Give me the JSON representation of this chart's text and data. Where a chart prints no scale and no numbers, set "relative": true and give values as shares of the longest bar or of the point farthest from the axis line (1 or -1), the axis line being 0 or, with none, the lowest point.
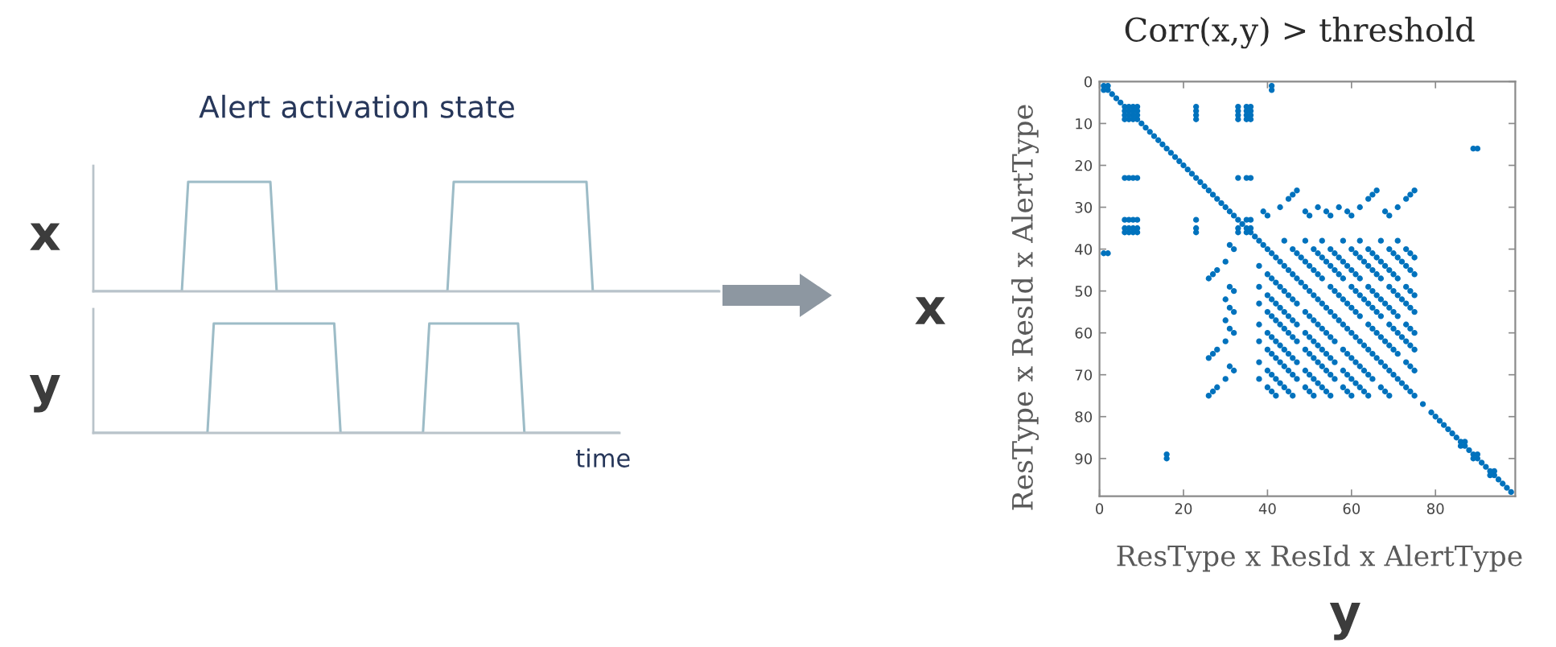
{
  "chart_data": [
    {
      "type": "line",
      "title": "Alert activation state",
      "ylabel": "x",
      "relative": true,
      "color": "#9dbcc7",
      "categories": [
        null,
        null,
        null,
        null,
        null,
        null,
        null,
        null,
        null,
        null,
        null,
        null,
        null,
        null,
        null,
        null,
        null,
        null,
        null,
        null,
        null,
        null,
        null,
        null,
        null,
        null,
        null,
        null,
        null,
        null,
        null,
        null,
        null,
        null,
        null,
        null,
        null,
        null,
        null,
        null,
        null,
        null,
        null,
        null,
        null,
        null,
        null,
        null,
        null,
        null,
        null,
        null,
        null,
        null,
        null,
        null,
        null,
        null,
        null,
        null,
        null,
        null,
        null,
        null,
        null,
        null,
        null,
        null,
        null,
        null,
        null,
        null,
        null,
        null,
        null,
        null,
        null,
        null,
        null,
        null,
        null,
        null,
        null,
        null,
        null,
        null,
        null,
        null,
        null,
        null,
        null,
        null,
        null,
        null,
        null,
        null,
        null,
        null,
        null,
        null
      ],
      "values": [
        0,
        0,
        0,
        0,
        0,
        0,
        0,
        0,
        0,
        0,
        0,
        0,
        0,
        0,
        0,
        1,
        1,
        1,
        1,
        1,
        1,
        1,
        1,
        1,
        1,
        1,
        1,
        1,
        1,
        0,
        0,
        0,
        0,
        0,
        0,
        0,
        0,
        0,
        0,
        0,
        0,
        0,
        0,
        0,
        0,
        0,
        0,
        0,
        0,
        0,
        0,
        0,
        0,
        0,
        0,
        0,
        0,
        1,
        1,
        1,
        1,
        1,
        1,
        1,
        1,
        1,
        1,
        1,
        1,
        1,
        1,
        1,
        1,
        1,
        1,
        1,
        1,
        1,
        1,
        0,
        0,
        0,
        0,
        0,
        0,
        0,
        0,
        0,
        0,
        0,
        0,
        0,
        0,
        0,
        0,
        0,
        0,
        0,
        0,
        0
      ]
    },
    {
      "type": "line",
      "ylabel": "y",
      "xlabel": "time",
      "relative": true,
      "color": "#9dbcc7",
      "categories": [
        null,
        null,
        null,
        null,
        null,
        null,
        null,
        null,
        null,
        null,
        null,
        null,
        null,
        null,
        null,
        null,
        null,
        null,
        null,
        null,
        null,
        null,
        null,
        null,
        null,
        null,
        null,
        null,
        null,
        null,
        null,
        null,
        null,
        null,
        null,
        null,
        null,
        null,
        null,
        null,
        null,
        null,
        null,
        null,
        null,
        null,
        null,
        null,
        null,
        null,
        null,
        null,
        null,
        null,
        null,
        null,
        null,
        null,
        null,
        null,
        null,
        null,
        null,
        null,
        null,
        null,
        null,
        null,
        null,
        null,
        null,
        null,
        null,
        null,
        null,
        null,
        null,
        null,
        null,
        null,
        null,
        null,
        null,
        null
      ],
      "values": [
        0,
        0,
        0,
        0,
        0,
        0,
        0,
        0,
        0,
        0,
        0,
        0,
        0,
        0,
        0,
        0,
        0,
        0,
        0,
        1,
        1,
        1,
        1,
        1,
        1,
        1,
        1,
        1,
        1,
        1,
        1,
        1,
        1,
        1,
        1,
        1,
        1,
        1,
        1,
        0,
        0,
        0,
        0,
        0,
        0,
        0,
        0,
        0,
        0,
        0,
        0,
        0,
        0,
        1,
        1,
        1,
        1,
        1,
        1,
        1,
        1,
        1,
        1,
        1,
        1,
        1,
        1,
        1,
        0,
        0,
        0,
        0,
        0,
        0,
        0,
        0,
        0,
        0,
        0,
        0,
        0,
        0,
        0,
        0
      ]
    },
    {
      "type": "scatter",
      "title": "Corr(x,y) > threshold",
      "xlabel": "ResType x ResId x AlertType",
      "ylabel": "ResType x ResId x AlertType",
      "annotations": [
        "x",
        "y"
      ],
      "color": "#0072bd",
      "marker": "circle",
      "xlim": [
        0,
        99
      ],
      "ylim": [
        99,
        0
      ],
      "xticks": [
        0,
        20,
        40,
        60,
        80
      ],
      "yticks": [
        0,
        10,
        20,
        30,
        40,
        50,
        60,
        70,
        80,
        90
      ],
      "x": [
        1,
        2,
        3,
        4,
        5,
        6,
        7,
        8,
        9,
        10,
        11,
        12,
        13,
        14,
        15,
        16,
        17,
        18,
        19,
        20,
        21,
        22,
        23,
        24,
        25,
        26,
        27,
        28,
        29,
        30,
        31,
        32,
        33,
        34,
        35,
        36,
        37,
        38,
        39,
        40,
        41,
        42,
        43,
        44,
        45,
        46,
        47,
        48,
        49,
        50,
        51,
        52,
        53,
        54,
        55,
        56,
        57,
        58,
        59,
        60,
        61,
        62,
        63,
        64,
        65,
        66,
        67,
        68,
        69,
        70,
        71,
        72,
        73,
        74,
        75,
        77,
        79,
        80,
        81,
        82,
        83,
        84,
        85,
        86,
        87,
        88,
        89,
        90,
        91,
        92,
        93,
        94,
        95,
        96,
        97,
        98,
        2,
        7,
        8,
        9,
        8,
        9,
        9,
        23,
        23,
        23,
        23,
        33,
        33,
        33,
        33,
        35,
        35,
        35,
        35,
        36,
        36,
        36,
        36,
        41,
        41,
        89,
        90,
        33,
        35,
        36,
        35,
        36,
        36,
        87,
        90,
        94,
        1,
        6,
        6,
        6,
        7,
        7,
        8,
        6,
        7,
        8,
        9,
        6,
        7,
        8,
        9,
        6,
        7,
        8,
        9,
        6,
        7,
        8,
        9,
        1,
        2,
        16,
        16,
        23,
        23,
        23,
        33,
        33,
        35,
        86,
        89,
        93,
        39,
        40,
        43,
        45,
        46,
        47,
        49,
        50,
        52,
        54,
        55,
        57,
        59,
        60,
        62,
        64,
        65,
        66,
        68,
        69,
        71,
        73,
        74,
        75,
        31,
        32,
        30,
        28,
        27,
        26,
        31,
        32,
        30,
        31,
        32,
        30,
        31,
        32,
        30,
        28,
        27,
        26,
        31,
        32,
        30,
        28,
        27,
        26,
        44,
        46,
        47,
        48,
        49,
        50,
        51,
        52,
        53,
        55,
        56,
        57,
        58,
        59,
        60,
        61,
        62,
        64,
        65,
        66,
        67,
        68,
        69,
        70,
        71,
        73,
        74,
        75,
        49,
        51,
        52,
        53,
        54,
        55,
        56,
        57,
        58,
        60,
        61,
        62,
        63,
        64,
        65,
        66,
        67,
        69,
        70,
        71,
        72,
        73,
        74,
        75,
        53,
        55,
        56,
        57,
        58,
        59,
        60,
        61,
        62,
        64,
        65,
        66,
        67,
        68,
        69,
        70,
        71,
        73,
        74,
        75,
        58,
        60,
        61,
        62,
        63,
        64,
        65,
        66,
        67,
        69,
        70,
        71,
        72,
        73,
        74,
        75,
        62,
        64,
        65,
        66,
        67,
        68,
        69,
        70,
        71,
        73,
        74,
        75,
        67,
        69,
        70,
        71,
        72,
        73,
        74,
        75,
        71,
        73,
        74,
        75,
        38,
        40,
        41,
        42,
        43,
        44,
        45,
        46,
        47,
        49,
        50,
        51,
        52,
        53,
        54,
        55,
        56,
        58,
        59,
        60,
        61,
        62,
        63,
        64,
        65,
        67,
        68,
        69,
        38,
        40,
        41,
        42,
        43,
        44,
        45,
        46,
        47,
        49,
        50,
        51,
        52,
        53,
        54,
        55,
        56,
        58,
        59,
        60,
        61,
        62,
        63,
        64,
        38,
        40,
        41,
        42,
        43,
        44,
        45,
        46,
        47,
        49,
        50,
        51,
        52,
        53,
        54,
        55,
        56,
        58,
        59,
        60,
        38,
        40,
        41,
        42,
        43,
        44,
        45,
        46,
        47,
        49,
        50,
        51,
        52,
        53,
        54,
        55,
        38,
        40,
        41,
        42,
        43,
        44,
        45,
        46,
        47,
        49,
        50,
        51,
        38,
        40,
        41,
        42,
        43,
        44,
        45,
        46,
        38,
        40,
        41,
        42
      ],
      "values": [
        1,
        2,
        3,
        4,
        5,
        6,
        7,
        8,
        9,
        10,
        11,
        12,
        13,
        14,
        15,
        16,
        17,
        18,
        19,
        20,
        21,
        22,
        23,
        24,
        25,
        26,
        27,
        28,
        29,
        30,
        31,
        32,
        33,
        34,
        35,
        36,
        37,
        38,
        39,
        40,
        41,
        42,
        43,
        44,
        45,
        46,
        47,
        48,
        49,
        50,
        51,
        52,
        53,
        54,
        55,
        56,
        57,
        58,
        59,
        60,
        61,
        62,
        63,
        64,
        65,
        66,
        67,
        68,
        69,
        70,
        71,
        72,
        73,
        74,
        75,
        77,
        79,
        80,
        81,
        82,
        83,
        84,
        85,
        86,
        87,
        88,
        89,
        90,
        91,
        92,
        93,
        94,
        95,
        96,
        97,
        98,
        1,
        6,
        6,
        6,
        7,
        7,
        8,
        6,
        7,
        8,
        9,
        6,
        7,
        8,
        9,
        6,
        7,
        8,
        9,
        6,
        7,
        8,
        9,
        1,
        2,
        16,
        16,
        23,
        23,
        23,
        33,
        33,
        35,
        86,
        89,
        93,
        2,
        7,
        8,
        9,
        8,
        9,
        9,
        23,
        23,
        23,
        23,
        33,
        33,
        33,
        33,
        35,
        35,
        35,
        35,
        36,
        36,
        36,
        36,
        41,
        41,
        89,
        90,
        33,
        35,
        36,
        35,
        36,
        36,
        87,
        90,
        94,
        31,
        32,
        30,
        28,
        27,
        26,
        31,
        32,
        30,
        31,
        32,
        30,
        31,
        32,
        30,
        28,
        27,
        26,
        31,
        32,
        30,
        28,
        27,
        26,
        39,
        40,
        43,
        45,
        46,
        47,
        49,
        50,
        52,
        54,
        55,
        57,
        59,
        60,
        62,
        64,
        65,
        66,
        68,
        69,
        71,
        73,
        74,
        75,
        38,
        40,
        41,
        42,
        43,
        44,
        45,
        46,
        47,
        49,
        50,
        51,
        52,
        53,
        54,
        55,
        56,
        58,
        59,
        60,
        61,
        62,
        63,
        64,
        65,
        67,
        68,
        69,
        38,
        40,
        41,
        42,
        43,
        44,
        45,
        46,
        47,
        49,
        50,
        51,
        52,
        53,
        54,
        55,
        56,
        58,
        59,
        60,
        61,
        62,
        63,
        64,
        38,
        40,
        41,
        42,
        43,
        44,
        45,
        46,
        47,
        49,
        50,
        51,
        52,
        53,
        54,
        55,
        56,
        58,
        59,
        60,
        38,
        40,
        41,
        42,
        43,
        44,
        45,
        46,
        47,
        49,
        50,
        51,
        52,
        53,
        54,
        55,
        38,
        40,
        41,
        42,
        43,
        44,
        45,
        46,
        47,
        49,
        50,
        51,
        38,
        40,
        41,
        42,
        43,
        44,
        45,
        46,
        38,
        40,
        41,
        42,
        44,
        46,
        47,
        48,
        49,
        50,
        51,
        52,
        53,
        55,
        56,
        57,
        58,
        59,
        60,
        61,
        62,
        64,
        65,
        66,
        67,
        68,
        69,
        70,
        71,
        73,
        74,
        75,
        49,
        51,
        52,
        53,
        54,
        55,
        56,
        57,
        58,
        60,
        61,
        62,
        63,
        64,
        65,
        66,
        67,
        69,
        70,
        71,
        72,
        73,
        74,
        75,
        53,
        55,
        56,
        57,
        58,
        59,
        60,
        61,
        62,
        64,
        65,
        66,
        67,
        68,
        69,
        70,
        71,
        73,
        74,
        75,
        58,
        60,
        61,
        62,
        63,
        64,
        65,
        66,
        67,
        69,
        70,
        71,
        72,
        73,
        74,
        75,
        62,
        64,
        65,
        66,
        67,
        68,
        69,
        70,
        71,
        73,
        74,
        75,
        67,
        69,
        70,
        71,
        72,
        73,
        74,
        75,
        71,
        73,
        74,
        75
      ]
    }
  ]
}
